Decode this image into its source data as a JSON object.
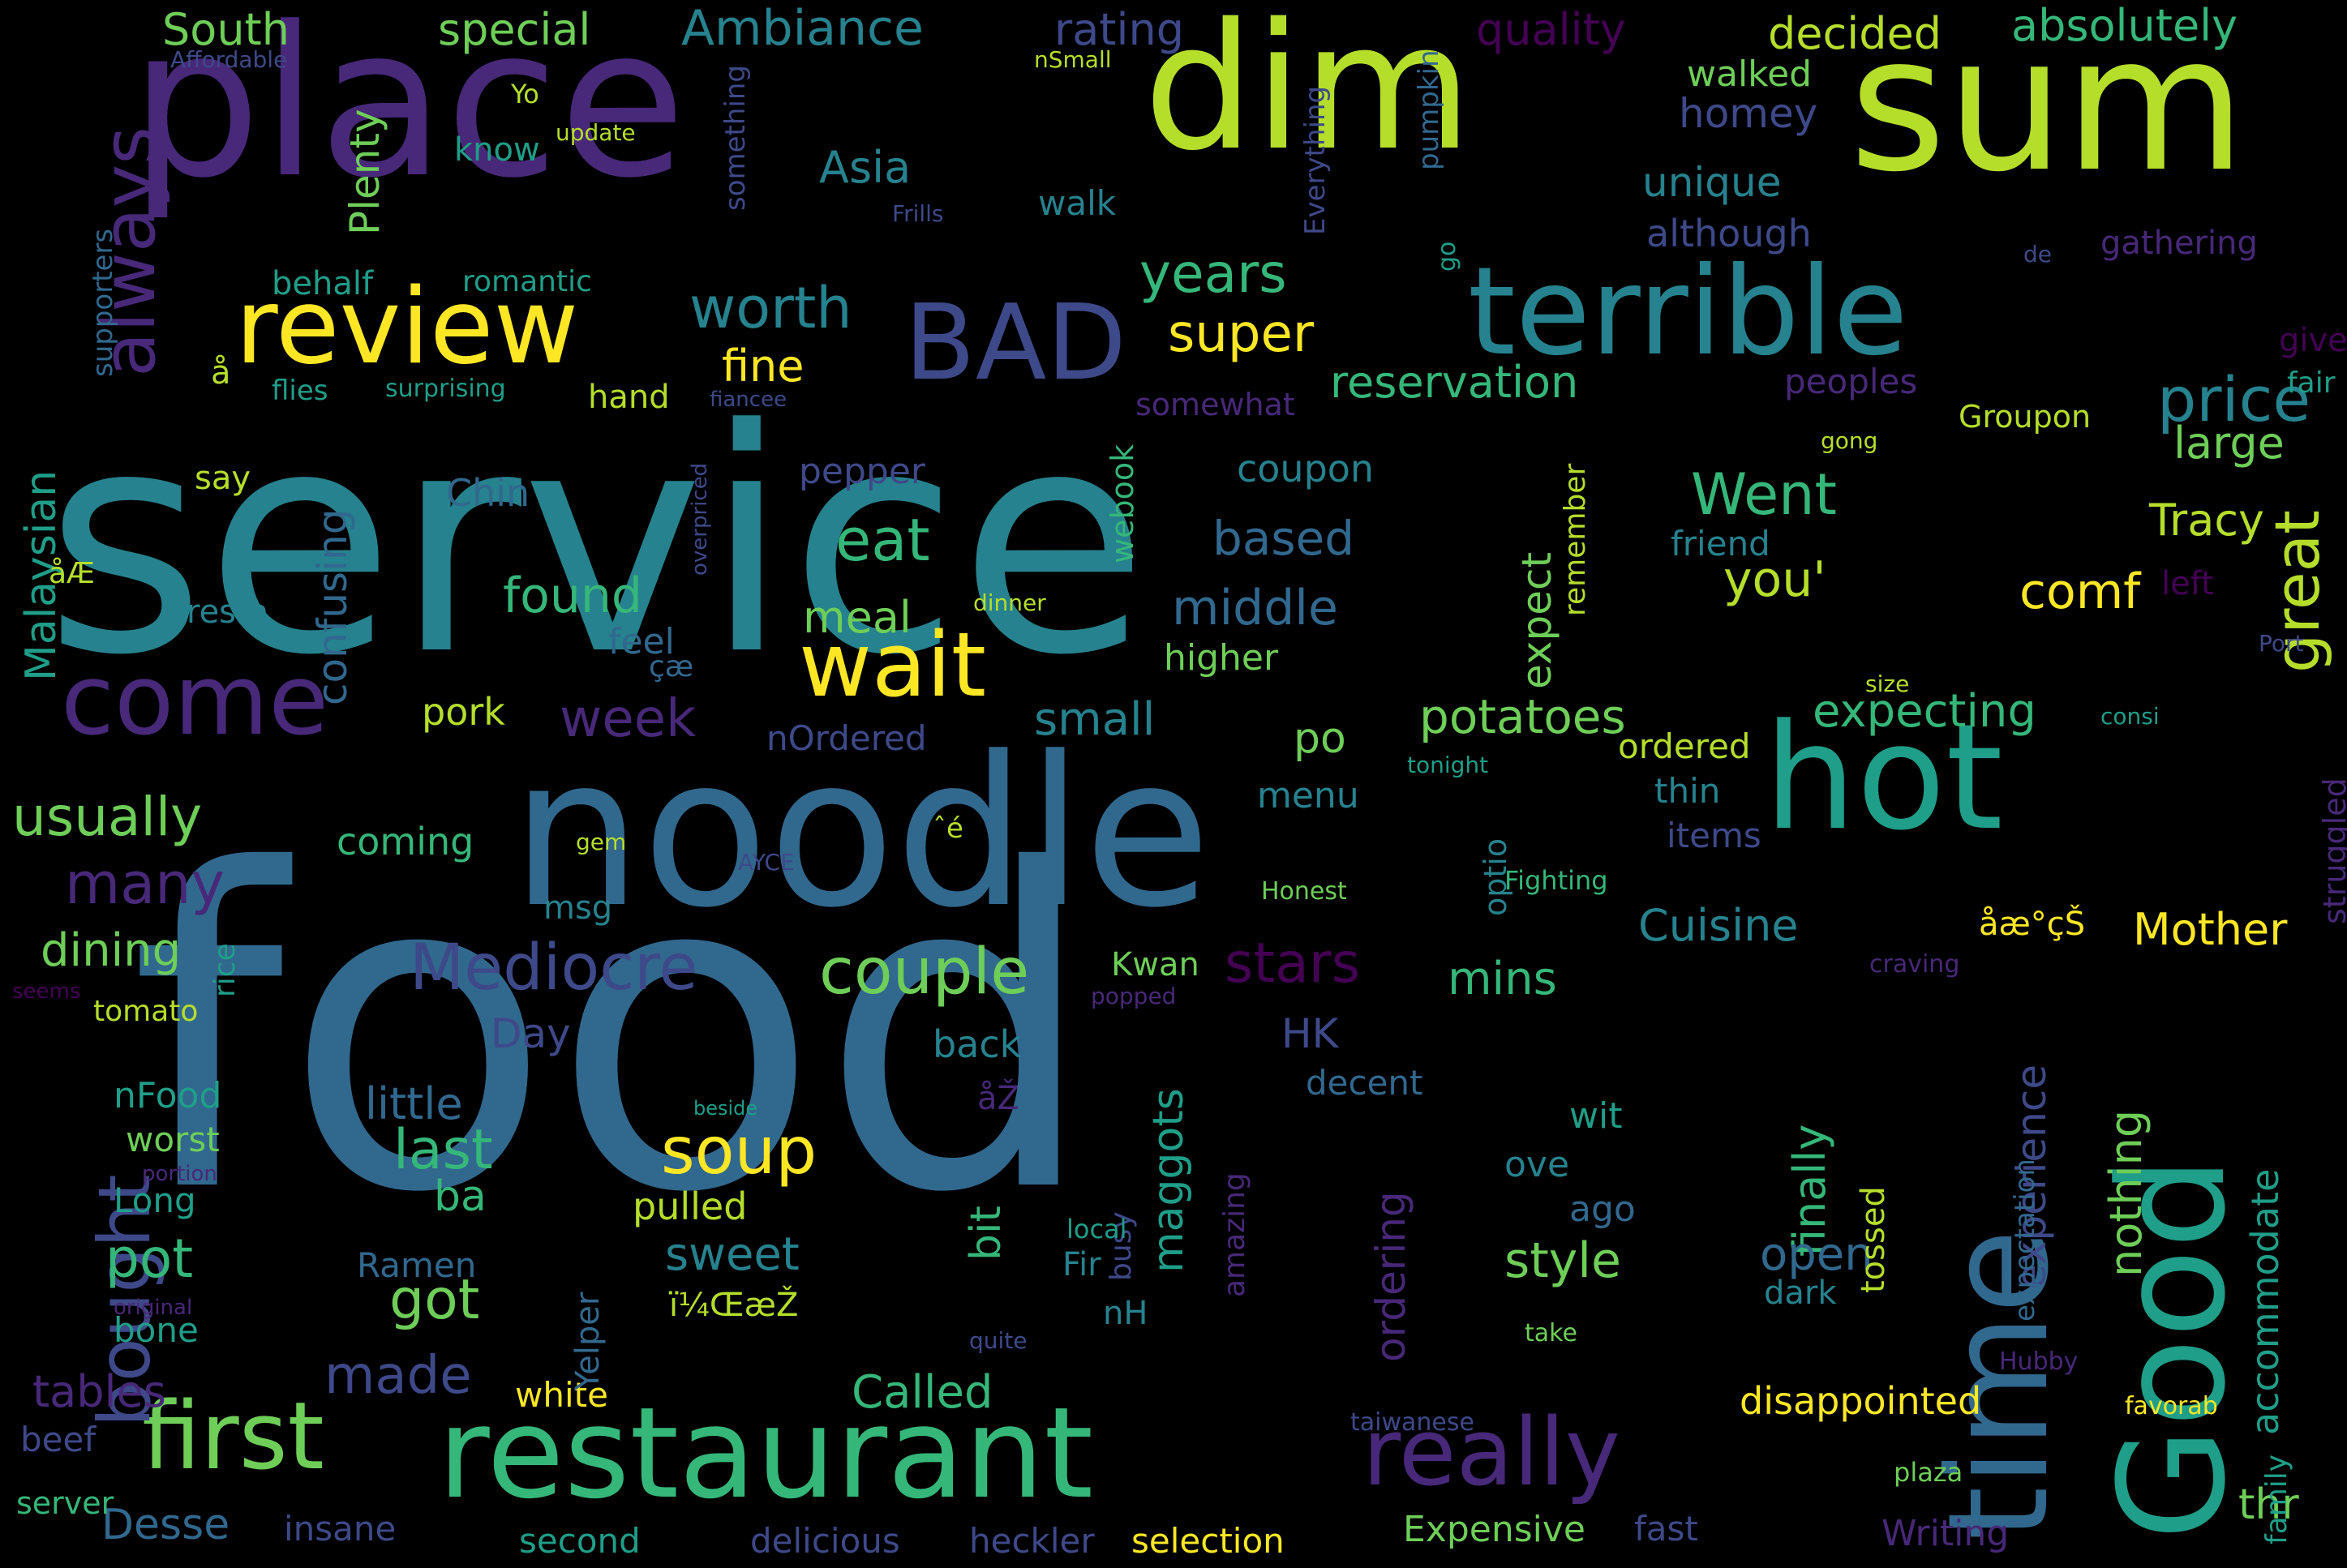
{
  "palette": {
    "background": "#000000",
    "dark_purple": "#440154",
    "purple": "#482878",
    "indigo": "#3e4989",
    "blue": "#31688e",
    "teal": "#26828e",
    "green_teal": "#1f9e89",
    "green": "#35b779",
    "light_green": "#6ece58",
    "lime": "#b5de2b",
    "yellow": "#fde725"
  },
  "words": [
    {
      "id": "food",
      "text": "food"
    },
    {
      "id": "service",
      "text": "service"
    },
    {
      "id": "noodle",
      "text": "noodle"
    },
    {
      "id": "place",
      "text": "place"
    },
    {
      "id": "dim",
      "text": "dim"
    },
    {
      "id": "sum",
      "text": "sum"
    },
    {
      "id": "terrible",
      "text": "terrible"
    },
    {
      "id": "good",
      "text": "Good"
    },
    {
      "id": "time",
      "text": "time"
    },
    {
      "id": "hot",
      "text": "hot"
    },
    {
      "id": "restaurant",
      "text": "restaurant"
    },
    {
      "id": "review",
      "text": "review"
    },
    {
      "id": "bad",
      "text": "BAD"
    },
    {
      "id": "come",
      "text": "come"
    },
    {
      "id": "wait",
      "text": "wait"
    },
    {
      "id": "really",
      "text": "really"
    },
    {
      "id": "first",
      "text": "first"
    },
    {
      "id": "always",
      "text": "always"
    },
    {
      "id": "bought",
      "text": "bought"
    },
    {
      "id": "mediocre",
      "text": "Mediocre"
    },
    {
      "id": "couple",
      "text": "couple"
    },
    {
      "id": "soup",
      "text": "soup"
    },
    {
      "id": "great",
      "text": "great"
    },
    {
      "id": "price",
      "text": "price"
    },
    {
      "id": "went",
      "text": "Went"
    },
    {
      "id": "ambiance",
      "text": "Ambiance"
    },
    {
      "id": "worth",
      "text": "worth"
    },
    {
      "id": "years",
      "text": "years"
    },
    {
      "id": "super",
      "text": "super"
    },
    {
      "id": "usually",
      "text": "usually"
    },
    {
      "id": "many",
      "text": "many"
    },
    {
      "id": "eat",
      "text": "eat"
    },
    {
      "id": "stars",
      "text": "stars"
    },
    {
      "id": "last",
      "text": "last"
    },
    {
      "id": "got",
      "text": "got"
    },
    {
      "id": "pot",
      "text": "pot"
    },
    {
      "id": "made",
      "text": "made"
    },
    {
      "id": "week",
      "text": "week"
    },
    {
      "id": "potatoes",
      "text": "potatoes"
    },
    {
      "id": "expecting",
      "text": "expecting"
    },
    {
      "id": "style",
      "text": "style"
    },
    {
      "id": "reservation",
      "text": "reservation"
    },
    {
      "id": "tracy",
      "text": "Tracy"
    },
    {
      "id": "nothing",
      "text": "nothing"
    },
    {
      "id": "experience",
      "text": "experience"
    },
    {
      "id": "south",
      "text": "South"
    },
    {
      "id": "special",
      "text": "special"
    },
    {
      "id": "rating",
      "text": "rating"
    },
    {
      "id": "quality",
      "text": "quality"
    },
    {
      "id": "decided",
      "text": "decided"
    },
    {
      "id": "absolutely",
      "text": "absolutely"
    },
    {
      "id": "malaysian",
      "text": "Malaysian"
    },
    {
      "id": "plenty",
      "text": "Plenty"
    },
    {
      "id": "asia",
      "text": "Asia"
    },
    {
      "id": "unique",
      "text": "unique"
    },
    {
      "id": "homey",
      "text": "homey"
    },
    {
      "id": "walked",
      "text": "walked"
    },
    {
      "id": "although",
      "text": "although"
    },
    {
      "id": "fine",
      "text": "fine"
    },
    {
      "id": "large",
      "text": "large"
    },
    {
      "id": "confusing",
      "text": "confusing"
    },
    {
      "id": "found",
      "text": "found"
    },
    {
      "id": "middle",
      "text": "middle"
    },
    {
      "id": "based",
      "text": "based"
    },
    {
      "id": "meal",
      "text": "meal"
    },
    {
      "id": "you",
      "text": "you'"
    },
    {
      "id": "comf",
      "text": "comf"
    },
    {
      "id": "dining",
      "text": "dining"
    },
    {
      "id": "cuisine",
      "text": "Cuisine"
    },
    {
      "id": "mother",
      "text": "Mother"
    },
    {
      "id": "mins",
      "text": "mins"
    },
    {
      "id": "small",
      "text": "small"
    },
    {
      "id": "maggots",
      "text": "maggots"
    },
    {
      "id": "finally",
      "text": "finally"
    },
    {
      "id": "open",
      "text": "open"
    },
    {
      "id": "called",
      "text": "Called"
    },
    {
      "id": "sweet",
      "text": "sweet"
    },
    {
      "id": "accommodate",
      "text": "accommodate"
    },
    {
      "id": "disappointed",
      "text": "disappointed"
    },
    {
      "id": "expensive",
      "text": "Expensive"
    },
    {
      "id": "desse",
      "text": "Desse"
    },
    {
      "id": "little",
      "text": "little"
    },
    {
      "id": "tables",
      "text": "tables"
    },
    {
      "id": "ordering",
      "text": "ordering"
    },
    {
      "id": "expect",
      "text": "expect"
    },
    {
      "id": "day",
      "text": "Day"
    },
    {
      "id": "hk",
      "text": "HK"
    },
    {
      "id": "po",
      "text": "po"
    },
    {
      "id": "ba",
      "text": "ba"
    },
    {
      "id": "bit",
      "text": "bit"
    },
    {
      "id": "thr",
      "text": "thr"
    },
    {
      "id": "writing",
      "text": "Writing"
    },
    {
      "id": "selection",
      "text": "selection"
    },
    {
      "id": "heckler",
      "text": "heckler"
    },
    {
      "id": "delicious",
      "text": "delicious"
    },
    {
      "id": "second",
      "text": "second"
    },
    {
      "id": "insane",
      "text": "insane"
    },
    {
      "id": "fast",
      "text": "fast"
    },
    {
      "id": "pulled",
      "text": "pulled"
    },
    {
      "id": "white",
      "text": "white"
    },
    {
      "id": "worst",
      "text": "worst"
    },
    {
      "id": "nfood",
      "text": "nFood"
    },
    {
      "id": "long",
      "text": "Long"
    },
    {
      "id": "bone",
      "text": "bone"
    },
    {
      "id": "beef",
      "text": "beef"
    },
    {
      "id": "server",
      "text": "server"
    },
    {
      "id": "ramen",
      "text": "Ramen"
    },
    {
      "id": "yelper",
      "text": "Yelper"
    },
    {
      "id": "back",
      "text": "back"
    },
    {
      "id": "kwan",
      "text": "Kwan"
    },
    {
      "id": "nh",
      "text": "nH"
    },
    {
      "id": "fir",
      "text": "Fir"
    },
    {
      "id": "wit",
      "text": "wit"
    },
    {
      "id": "ove",
      "text": "ove"
    },
    {
      "id": "ago",
      "text": "ago"
    },
    {
      "id": "dark",
      "text": "dark"
    },
    {
      "id": "take",
      "text": "take"
    },
    {
      "id": "decent",
      "text": "decent"
    },
    {
      "id": "tossed",
      "text": "tossed"
    },
    {
      "id": "expectation",
      "text": "expectation"
    },
    {
      "id": "struggled",
      "text": "struggled"
    },
    {
      "id": "family",
      "text": "family"
    },
    {
      "id": "coming",
      "text": "coming"
    },
    {
      "id": "tomato",
      "text": "tomato"
    },
    {
      "id": "rice",
      "text": "rice"
    },
    {
      "id": "pork",
      "text": "pork"
    },
    {
      "id": "hand",
      "text": "hand"
    },
    {
      "id": "behalf",
      "text": "behalf"
    },
    {
      "id": "romantic",
      "text": "romantic"
    },
    {
      "id": "surprising",
      "text": "surprising"
    },
    {
      "id": "flies",
      "text": "flies"
    },
    {
      "id": "say",
      "text": "say"
    },
    {
      "id": "resta",
      "text": "resta"
    },
    {
      "id": "chin",
      "text": "Chin"
    },
    {
      "id": "feel",
      "text": "feel"
    },
    {
      "id": "supporters",
      "text": "supporters"
    },
    {
      "id": "something",
      "text": "something"
    },
    {
      "id": "know",
      "text": "know"
    },
    {
      "id": "walk",
      "text": "walk"
    },
    {
      "id": "everything",
      "text": "Everything"
    },
    {
      "id": "pumpkin",
      "text": "pumpkin"
    },
    {
      "id": "go",
      "text": "go"
    },
    {
      "id": "webook",
      "text": "webook"
    },
    {
      "id": "pepper",
      "text": "pepper"
    },
    {
      "id": "coupon",
      "text": "coupon"
    },
    {
      "id": "remember",
      "text": "remember"
    },
    {
      "id": "friend",
      "text": "friend"
    },
    {
      "id": "peoples",
      "text": "peoples"
    },
    {
      "id": "groupon",
      "text": "Groupon"
    },
    {
      "id": "somewhat",
      "text": "somewhat"
    },
    {
      "id": "gathering",
      "text": "gathering"
    },
    {
      "id": "give",
      "text": "give"
    },
    {
      "id": "fair",
      "text": "fair"
    },
    {
      "id": "left",
      "text": "left"
    },
    {
      "id": "higher",
      "text": "higher"
    },
    {
      "id": "menu",
      "text": "menu"
    },
    {
      "id": "msg",
      "text": "msg"
    },
    {
      "id": "optio",
      "text": "optio"
    },
    {
      "id": "items",
      "text": "items"
    },
    {
      "id": "thin",
      "text": "thin"
    },
    {
      "id": "ordered",
      "text": "ordered"
    },
    {
      "id": "nordered",
      "text": "nOrdered"
    },
    {
      "id": "amazing",
      "text": "amazing"
    },
    {
      "id": "busy",
      "text": "busy"
    },
    {
      "id": "local",
      "text": "local"
    },
    {
      "id": "quite",
      "text": "quite"
    },
    {
      "id": "taiwanese",
      "text": "taiwanese"
    },
    {
      "id": "plaza",
      "text": "plaza"
    },
    {
      "id": "favorab",
      "text": "favorab"
    },
    {
      "id": "hubby",
      "text": "Hubby"
    },
    {
      "id": "affordable",
      "text": "Affordable"
    },
    {
      "id": "nsmall",
      "text": "nSmall"
    },
    {
      "id": "yo",
      "text": "Yo"
    },
    {
      "id": "update",
      "text": "update"
    },
    {
      "id": "frills",
      "text": "Frills"
    },
    {
      "id": "de",
      "text": "de"
    },
    {
      "id": "fiancee",
      "text": "fiancee"
    },
    {
      "id": "gong",
      "text": "gong"
    },
    {
      "id": "overpriced",
      "text": "overpriced"
    },
    {
      "id": "dinner",
      "text": "dinner"
    },
    {
      "id": "port",
      "text": "Port"
    },
    {
      "id": "size",
      "text": "size"
    },
    {
      "id": "consi",
      "text": "consi"
    },
    {
      "id": "tonight",
      "text": "tonight"
    },
    {
      "id": "gem",
      "text": "gem"
    },
    {
      "id": "ayce",
      "text": "AYCE"
    },
    {
      "id": "honest",
      "text": "Honest"
    },
    {
      "id": "fighting",
      "text": "Fighting"
    },
    {
      "id": "craving",
      "text": "craving"
    },
    {
      "id": "popped",
      "text": "popped"
    },
    {
      "id": "seems",
      "text": "seems"
    },
    {
      "id": "portion",
      "text": "portion"
    },
    {
      "id": "original",
      "text": "original"
    },
    {
      "id": "beside",
      "text": "beside"
    },
    {
      "id": "g1",
      "text": "å"
    },
    {
      "id": "g2",
      "text": "åŽ"
    },
    {
      "id": "g3",
      "text": "åÆ"
    },
    {
      "id": "g4",
      "text": "çæ"
    },
    {
      "id": "g5",
      "text": "ˆé"
    },
    {
      "id": "g6",
      "text": "ï¼ŒæŽ"
    },
    {
      "id": "g7",
      "text": "åæ°çŠ"
    }
  ]
}
